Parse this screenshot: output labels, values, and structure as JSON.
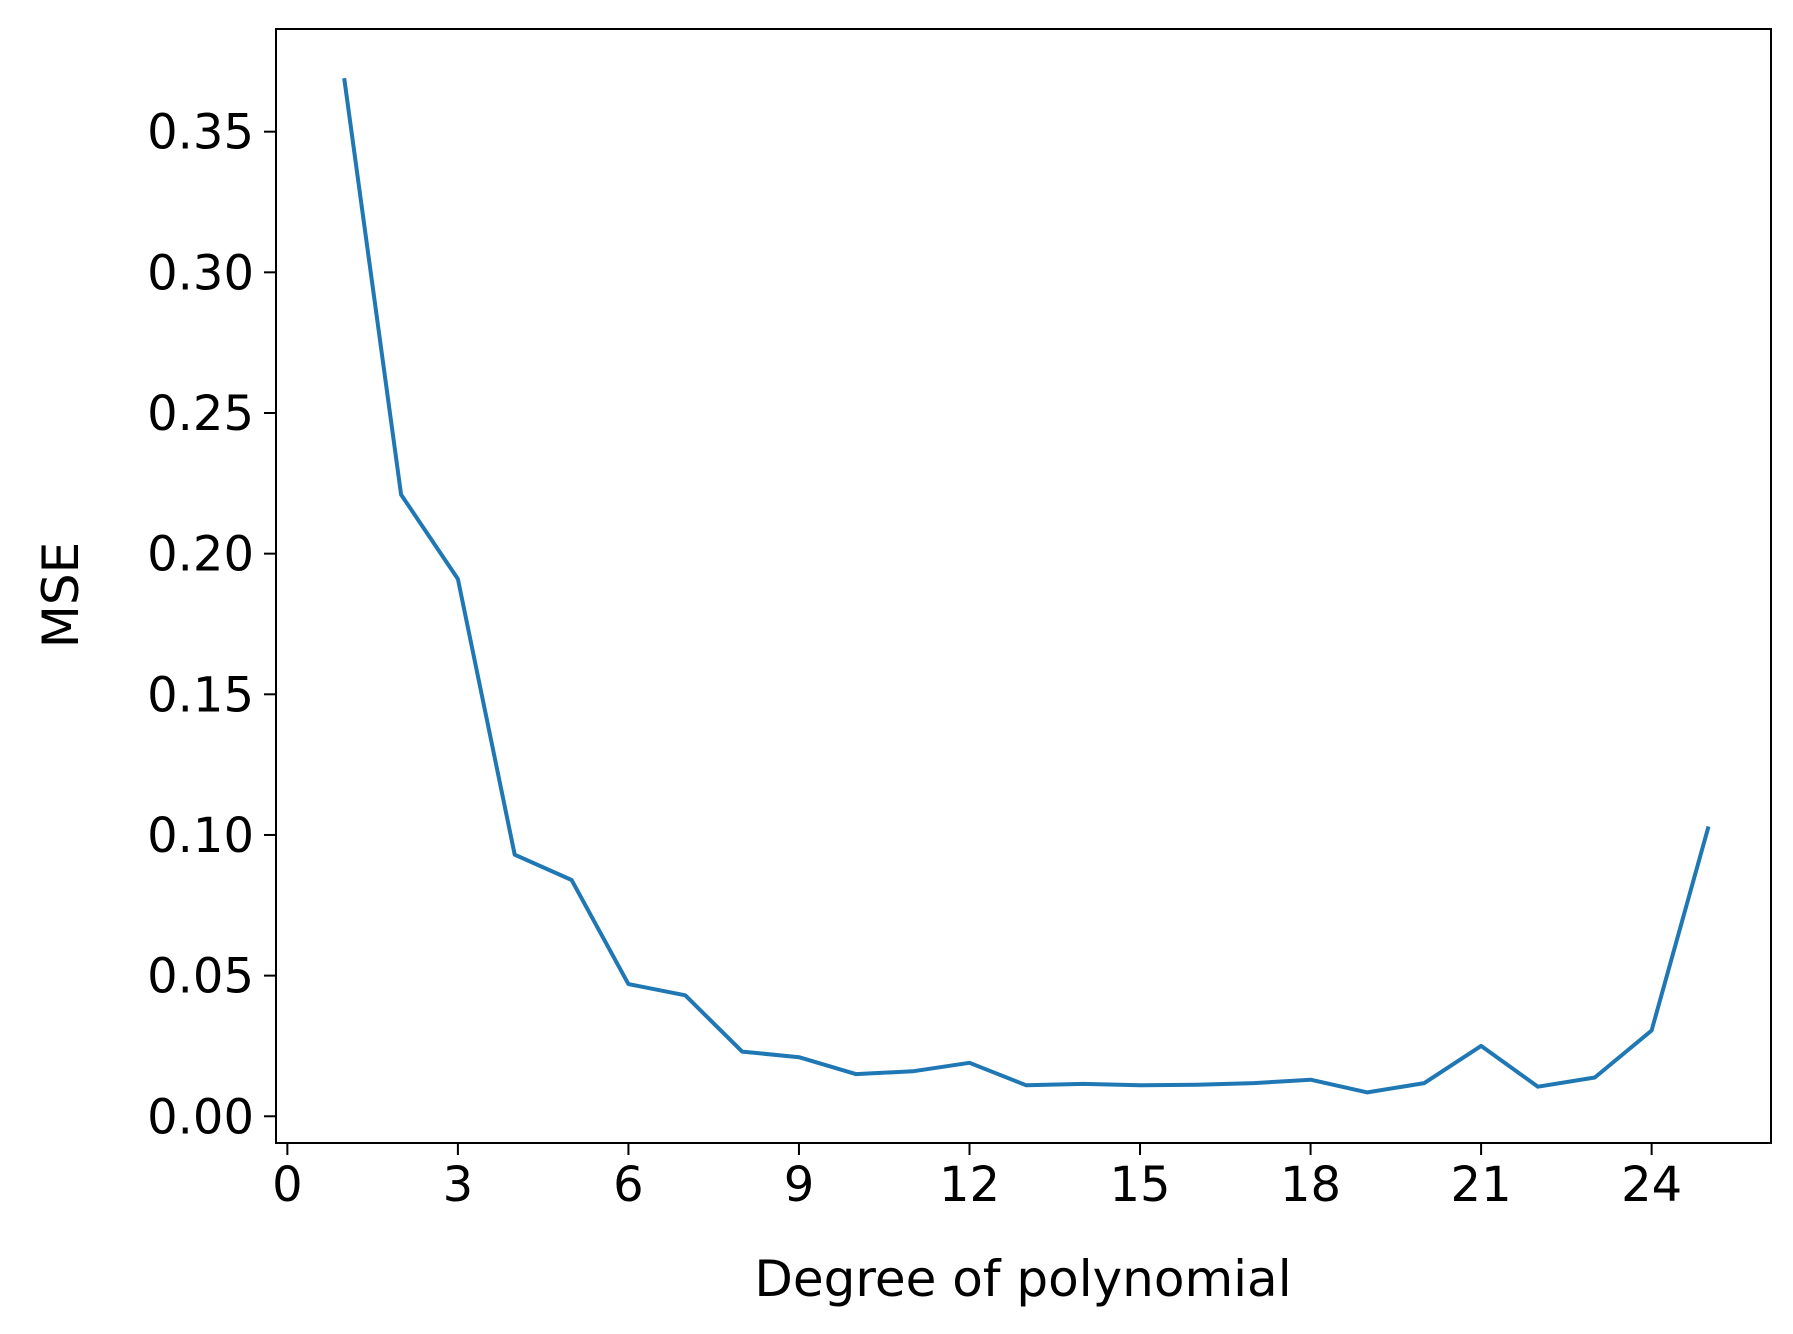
{
  "chart_data": {
    "type": "line",
    "title": "",
    "xlabel": "Degree of polynomial",
    "ylabel": "MSE",
    "xlim": [
      -0.2,
      26.1
    ],
    "ylim": [
      -0.0095,
      0.3865
    ],
    "xticks": [
      0,
      3,
      6,
      9,
      12,
      15,
      18,
      21,
      24
    ],
    "xtick_labels": [
      "0",
      "3",
      "6",
      "9",
      "12",
      "15",
      "18",
      "21",
      "24"
    ],
    "yticks": [
      0.0,
      0.05,
      0.1,
      0.15,
      0.2,
      0.25,
      0.3,
      0.35
    ],
    "ytick_labels": [
      "0.00",
      "0.05",
      "0.10",
      "0.15",
      "0.20",
      "0.25",
      "0.30",
      "0.35"
    ],
    "grid": false,
    "legend": null,
    "series": [
      {
        "color": "#1f77b4",
        "x": [
          1,
          2,
          3,
          4,
          5,
          6,
          7,
          8,
          9,
          10,
          11,
          12,
          13,
          14,
          15,
          16,
          17,
          18,
          19,
          20,
          21,
          22,
          23,
          24,
          25
        ],
        "y": [
          0.369,
          0.221,
          0.191,
          0.093,
          0.084,
          0.047,
          0.043,
          0.023,
          0.021,
          0.015,
          0.016,
          0.019,
          0.011,
          0.0115,
          0.011,
          0.0112,
          0.0118,
          0.013,
          0.0085,
          0.0118,
          0.025,
          0.0105,
          0.0138,
          0.0305,
          0.103
        ]
      }
    ]
  }
}
